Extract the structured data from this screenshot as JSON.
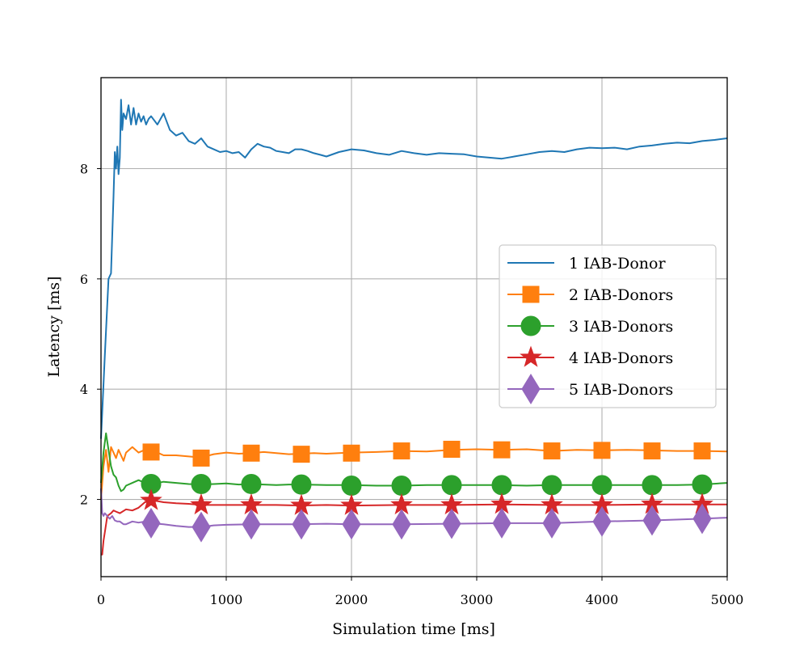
{
  "chart_data": {
    "type": "line",
    "title": "",
    "xlabel": "Simulation time [ms]",
    "ylabel": "Latency [ms]",
    "xlim": [
      0,
      5000
    ],
    "ylim": [
      0.6,
      9.65
    ],
    "xticks": [
      0,
      1000,
      2000,
      3000,
      4000,
      5000
    ],
    "yticks": [
      2,
      4,
      6,
      8
    ],
    "grid": true,
    "legend_position": "center-right",
    "series": [
      {
        "name": "1 IAB-Donor",
        "color": "#1f77b4",
        "marker": "none",
        "x": [
          0,
          30,
          60,
          80,
          100,
          110,
          120,
          130,
          140,
          150,
          160,
          170,
          180,
          200,
          220,
          240,
          260,
          280,
          300,
          320,
          340,
          360,
          380,
          400,
          450,
          500,
          550,
          600,
          650,
          700,
          750,
          800,
          850,
          900,
          950,
          1000,
          1050,
          1100,
          1150,
          1200,
          1250,
          1300,
          1350,
          1400,
          1450,
          1500,
          1550,
          1600,
          1650,
          1700,
          1750,
          1800,
          1900,
          2000,
          2100,
          2200,
          2300,
          2400,
          2500,
          2600,
          2700,
          2800,
          2900,
          3000,
          3100,
          3200,
          3300,
          3400,
          3500,
          3600,
          3700,
          3800,
          3900,
          4000,
          4100,
          4200,
          4300,
          4400,
          4500,
          4600,
          4700,
          4800,
          4900,
          5000
        ],
        "y": [
          3.1,
          4.6,
          6.0,
          6.1,
          7.5,
          8.3,
          8.0,
          8.4,
          7.9,
          8.2,
          9.25,
          8.7,
          9.0,
          8.9,
          9.15,
          8.8,
          9.1,
          8.8,
          9.0,
          8.85,
          8.95,
          8.8,
          8.9,
          8.95,
          8.8,
          9.0,
          8.7,
          8.6,
          8.65,
          8.5,
          8.45,
          8.55,
          8.4,
          8.35,
          8.3,
          8.32,
          8.28,
          8.3,
          8.2,
          8.35,
          8.45,
          8.4,
          8.38,
          8.32,
          8.3,
          8.28,
          8.35,
          8.35,
          8.32,
          8.28,
          8.25,
          8.22,
          8.3,
          8.35,
          8.33,
          8.28,
          8.25,
          8.32,
          8.28,
          8.25,
          8.28,
          8.27,
          8.26,
          8.22,
          8.2,
          8.18,
          8.22,
          8.26,
          8.3,
          8.32,
          8.3,
          8.35,
          8.38,
          8.37,
          8.38,
          8.35,
          8.4,
          8.42,
          8.45,
          8.47,
          8.46,
          8.5,
          8.52,
          8.55
        ]
      },
      {
        "name": "2 IAB-Donors",
        "color": "#ff7f0e",
        "marker": "square",
        "x": [
          0,
          20,
          40,
          60,
          80,
          100,
          120,
          140,
          160,
          180,
          200,
          250,
          300,
          350,
          400,
          450,
          500,
          600,
          700,
          800,
          900,
          1000,
          1100,
          1200,
          1300,
          1400,
          1500,
          1600,
          1700,
          1800,
          1900,
          2000,
          2200,
          2400,
          2600,
          2800,
          3000,
          3200,
          3400,
          3600,
          3800,
          4000,
          4200,
          4400,
          4600,
          4800,
          5000
        ],
        "y": [
          2.0,
          2.6,
          2.9,
          2.5,
          2.95,
          2.85,
          2.75,
          2.9,
          2.8,
          2.7,
          2.85,
          2.95,
          2.85,
          2.9,
          2.88,
          2.85,
          2.8,
          2.8,
          2.78,
          2.76,
          2.82,
          2.85,
          2.83,
          2.84,
          2.86,
          2.84,
          2.82,
          2.83,
          2.84,
          2.83,
          2.84,
          2.85,
          2.86,
          2.88,
          2.87,
          2.9,
          2.91,
          2.9,
          2.91,
          2.88,
          2.9,
          2.89,
          2.9,
          2.89,
          2.88,
          2.88,
          2.87
        ]
      },
      {
        "name": "3 IAB-Donors",
        "color": "#2ca02c",
        "marker": "circle",
        "x": [
          0,
          20,
          40,
          60,
          80,
          100,
          120,
          140,
          160,
          180,
          200,
          250,
          300,
          350,
          400,
          450,
          500,
          600,
          700,
          800,
          900,
          1000,
          1100,
          1200,
          1300,
          1400,
          1500,
          1600,
          1800,
          2000,
          2200,
          2400,
          2600,
          2800,
          3000,
          3200,
          3400,
          3600,
          3800,
          4000,
          4200,
          4400,
          4600,
          4800,
          5000
        ],
        "y": [
          2.3,
          2.85,
          3.2,
          2.9,
          2.6,
          2.45,
          2.4,
          2.25,
          2.15,
          2.18,
          2.25,
          2.3,
          2.35,
          2.3,
          2.28,
          2.3,
          2.32,
          2.3,
          2.28,
          2.27,
          2.28,
          2.29,
          2.27,
          2.28,
          2.27,
          2.26,
          2.27,
          2.27,
          2.26,
          2.26,
          2.25,
          2.25,
          2.26,
          2.26,
          2.26,
          2.26,
          2.25,
          2.26,
          2.26,
          2.26,
          2.26,
          2.26,
          2.26,
          2.27,
          2.3
        ]
      },
      {
        "name": "4 IAB-Donors",
        "color": "#d62728",
        "marker": "star",
        "x": [
          0,
          10,
          20,
          30,
          50,
          80,
          100,
          120,
          150,
          200,
          250,
          300,
          350,
          400,
          450,
          500,
          600,
          700,
          800,
          1000,
          1200,
          1400,
          1600,
          1800,
          2000,
          2400,
          2800,
          3200,
          3600,
          4000,
          4400,
          4800,
          5000
        ],
        "y": [
          1.0,
          1.0,
          1.25,
          1.4,
          1.7,
          1.75,
          1.8,
          1.78,
          1.75,
          1.82,
          1.8,
          1.85,
          1.95,
          1.98,
          1.97,
          1.95,
          1.93,
          1.92,
          1.9,
          1.9,
          1.9,
          1.9,
          1.89,
          1.9,
          1.89,
          1.9,
          1.9,
          1.91,
          1.9,
          1.9,
          1.91,
          1.91,
          1.91
        ]
      },
      {
        "name": "5 IAB-Donors",
        "color": "#9467bd",
        "marker": "diamond",
        "x": [
          0,
          10,
          20,
          30,
          50,
          70,
          90,
          110,
          130,
          150,
          180,
          200,
          250,
          300,
          350,
          400,
          450,
          500,
          600,
          700,
          800,
          900,
          1000,
          1200,
          1400,
          1600,
          1800,
          2000,
          2400,
          2800,
          3200,
          3600,
          4000,
          4400,
          4800,
          5000
        ],
        "y": [
          2.2,
          1.75,
          1.7,
          1.75,
          1.7,
          1.65,
          1.7,
          1.62,
          1.6,
          1.6,
          1.55,
          1.55,
          1.6,
          1.58,
          1.6,
          1.58,
          1.56,
          1.55,
          1.52,
          1.5,
          1.5,
          1.53,
          1.54,
          1.55,
          1.55,
          1.55,
          1.56,
          1.55,
          1.55,
          1.56,
          1.57,
          1.57,
          1.6,
          1.62,
          1.65,
          1.67
        ]
      }
    ],
    "markers": {
      "x": [
        400,
        800,
        1200,
        1600,
        2000,
        2400,
        2800,
        3200,
        3600,
        4000,
        4400,
        4800
      ],
      "series_values": [
        [],
        [
          2.86,
          2.75,
          2.84,
          2.82,
          2.84,
          2.88,
          2.91,
          2.9,
          2.88,
          2.89,
          2.88,
          2.88
        ],
        [
          2.28,
          2.28,
          2.28,
          2.27,
          2.25,
          2.25,
          2.26,
          2.26,
          2.26,
          2.26,
          2.26,
          2.27
        ],
        [
          1.98,
          1.9,
          1.9,
          1.89,
          1.89,
          1.9,
          1.9,
          1.91,
          1.9,
          1.9,
          1.91,
          1.91
        ],
        [
          1.57,
          1.5,
          1.55,
          1.55,
          1.55,
          1.55,
          1.56,
          1.57,
          1.57,
          1.6,
          1.62,
          1.65
        ]
      ]
    }
  }
}
